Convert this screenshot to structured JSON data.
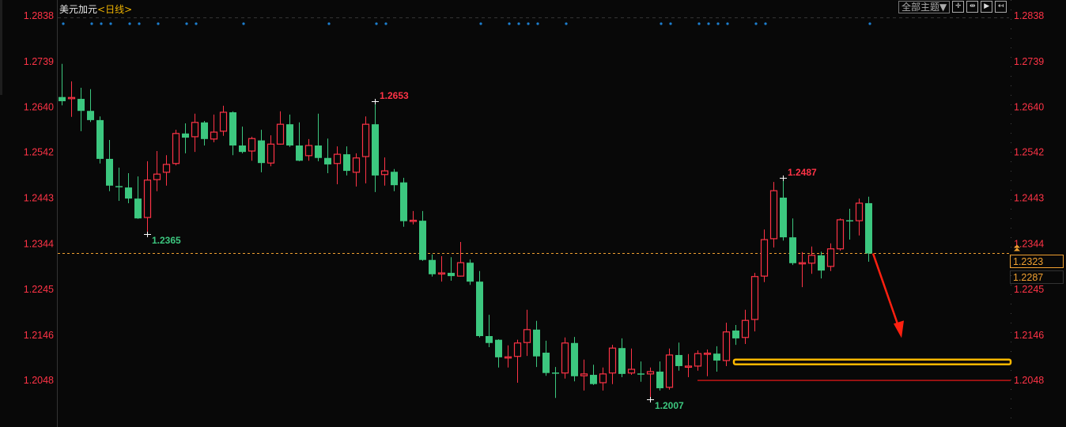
{
  "header": {
    "symbol": "美元加元",
    "period": "<日线>",
    "theme_button": "全部主题▼",
    "tools": [
      {
        "icon": "crosshair-icon",
        "glyph": "✛"
      },
      {
        "icon": "fit-range-icon",
        "glyph": "⇹"
      },
      {
        "icon": "play-forward-icon",
        "glyph": "▶"
      },
      {
        "icon": "exit-panel-icon",
        "glyph": "↤"
      }
    ]
  },
  "colors": {
    "background": "#080808",
    "up": "#ff3346",
    "down": "#3cc77f",
    "axis_text": "#ff3346",
    "current_price_line": "#f0a030",
    "marker_dot": "#1c7fd0",
    "highlight_box": "#ffb800",
    "support_line": "#ff1a1a",
    "arrow": "#ff2010"
  },
  "chart_data": {
    "type": "candlestick",
    "title": "美元加元<日线>",
    "ylim": [
      1.2007,
      1.2838
    ],
    "y_ticks": [
      "1.2838",
      "1.2739",
      "1.2640",
      "1.2542",
      "1.2443",
      "1.2344",
      "1.2245",
      "1.2146",
      "1.2048"
    ],
    "grid": false,
    "ohlc": [
      [
        1.2662,
        1.2734,
        1.2644,
        1.2653
      ],
      [
        1.2659,
        1.2696,
        1.2619,
        1.2661
      ],
      [
        1.2658,
        1.2682,
        1.2588,
        1.2632
      ],
      [
        1.2632,
        1.2679,
        1.2608,
        1.2612
      ],
      [
        1.2612,
        1.262,
        1.2518,
        1.2528
      ],
      [
        1.2528,
        1.2569,
        1.2458,
        1.247
      ],
      [
        1.2469,
        1.2509,
        1.2437,
        1.2468
      ],
      [
        1.2466,
        1.2497,
        1.2432,
        1.2442
      ],
      [
        1.2442,
        1.249,
        1.2398,
        1.2399
      ],
      [
        1.2401,
        1.2523,
        1.2365,
        1.2482
      ],
      [
        1.2483,
        1.2545,
        1.2458,
        1.2495
      ],
      [
        1.2499,
        1.2536,
        1.247,
        1.2516
      ],
      [
        1.2518,
        1.2591,
        1.2514,
        1.2583
      ],
      [
        1.2583,
        1.2605,
        1.254,
        1.2574
      ],
      [
        1.2576,
        1.2626,
        1.2543,
        1.2607
      ],
      [
        1.2607,
        1.261,
        1.2557,
        1.2571
      ],
      [
        1.2571,
        1.2624,
        1.2564,
        1.2586
      ],
      [
        1.2588,
        1.2643,
        1.2578,
        1.2629
      ],
      [
        1.2629,
        1.2631,
        1.2536,
        1.2557
      ],
      [
        1.2557,
        1.2598,
        1.254,
        1.2543
      ],
      [
        1.2545,
        1.2576,
        1.2524,
        1.2572
      ],
      [
        1.2568,
        1.2591,
        1.2499,
        1.2519
      ],
      [
        1.2519,
        1.2579,
        1.2512,
        1.256
      ],
      [
        1.256,
        1.2631,
        1.2559,
        1.2603
      ],
      [
        1.2603,
        1.2624,
        1.2554,
        1.2557
      ],
      [
        1.2557,
        1.2607,
        1.2523,
        1.2524
      ],
      [
        1.2535,
        1.2571,
        1.2524,
        1.2557
      ],
      [
        1.2557,
        1.2626,
        1.2523,
        1.253
      ],
      [
        1.253,
        1.2572,
        1.2497,
        1.2516
      ],
      [
        1.2518,
        1.2555,
        1.2473,
        1.2538
      ],
      [
        1.2538,
        1.2555,
        1.2492,
        1.2502
      ],
      [
        1.2499,
        1.254,
        1.2468,
        1.253
      ],
      [
        1.2533,
        1.262,
        1.2475,
        1.2603
      ],
      [
        1.2603,
        1.2653,
        1.2456,
        1.2492
      ],
      [
        1.2494,
        1.2531,
        1.247,
        1.2502
      ],
      [
        1.25,
        1.2506,
        1.2458,
        1.2471
      ],
      [
        1.2477,
        1.2487,
        1.2381,
        1.2393
      ],
      [
        1.2393,
        1.2415,
        1.2386,
        1.2395
      ],
      [
        1.2394,
        1.2415,
        1.2307,
        1.2309
      ],
      [
        1.2309,
        1.2321,
        1.2273,
        1.2278
      ],
      [
        1.2279,
        1.2317,
        1.2262,
        1.2281
      ],
      [
        1.2281,
        1.2315,
        1.2264,
        1.2274
      ],
      [
        1.2274,
        1.2348,
        1.2273,
        1.2303
      ],
      [
        1.2303,
        1.231,
        1.2255,
        1.2262
      ],
      [
        1.2262,
        1.2285,
        1.2141,
        1.2144
      ],
      [
        1.2144,
        1.219,
        1.212,
        1.2129
      ],
      [
        1.2136,
        1.2137,
        1.2076,
        1.2098
      ],
      [
        1.2097,
        1.2124,
        1.2076,
        1.2099
      ],
      [
        1.21,
        1.2136,
        1.2043,
        1.2129
      ],
      [
        1.213,
        1.2201,
        1.2101,
        1.2158
      ],
      [
        1.2158,
        1.2177,
        1.2077,
        1.21
      ],
      [
        1.2108,
        1.2134,
        1.2058,
        1.2064
      ],
      [
        1.2065,
        1.2077,
        1.201,
        1.2064
      ],
      [
        1.2064,
        1.2141,
        1.2052,
        1.2129
      ],
      [
        1.2129,
        1.2142,
        1.2046,
        1.2057
      ],
      [
        1.2058,
        1.2093,
        1.2026,
        1.2062
      ],
      [
        1.206,
        1.2082,
        1.2038,
        1.204
      ],
      [
        1.2043,
        1.2076,
        1.2026,
        1.2062
      ],
      [
        1.2064,
        1.2125,
        1.204,
        1.2118
      ],
      [
        1.2118,
        1.2139,
        1.2055,
        1.2062
      ],
      [
        1.2064,
        1.2117,
        1.206,
        1.2072
      ],
      [
        1.2063,
        1.2089,
        1.2045,
        1.2062
      ],
      [
        1.2062,
        1.2076,
        1.2007,
        1.2067
      ],
      [
        1.2067,
        1.2089,
        1.2026,
        1.2031
      ],
      [
        1.2033,
        1.2117,
        1.2028,
        1.2103
      ],
      [
        1.2103,
        1.213,
        1.2069,
        1.2079
      ],
      [
        1.2077,
        1.2105,
        1.2055,
        1.2079
      ],
      [
        1.2079,
        1.2113,
        1.2069,
        1.2106
      ],
      [
        1.2105,
        1.2115,
        1.2057,
        1.2107
      ],
      [
        1.2106,
        1.2122,
        1.2067,
        1.2091
      ],
      [
        1.2091,
        1.2173,
        1.2079,
        1.2153
      ],
      [
        1.2156,
        1.2168,
        1.2125,
        1.2139
      ],
      [
        1.2141,
        1.2201,
        1.2127,
        1.2178
      ],
      [
        1.218,
        1.2281,
        1.2154,
        1.2273
      ],
      [
        1.2274,
        1.2375,
        1.2261,
        1.2353
      ],
      [
        1.2355,
        1.2478,
        1.2336,
        1.2459
      ],
      [
        1.2444,
        1.2487,
        1.2351,
        1.2358
      ],
      [
        1.2358,
        1.2399,
        1.2298,
        1.2302
      ],
      [
        1.2301,
        1.2326,
        1.225,
        1.2303
      ],
      [
        1.2302,
        1.2338,
        1.2279,
        1.2319
      ],
      [
        1.2319,
        1.2327,
        1.2269,
        1.2286
      ],
      [
        1.2295,
        1.2345,
        1.2285,
        1.2333
      ],
      [
        1.2333,
        1.2399,
        1.2329,
        1.2396
      ],
      [
        1.2395,
        1.242,
        1.2353,
        1.2394
      ],
      [
        1.2394,
        1.2442,
        1.2362,
        1.2432
      ],
      [
        1.2432,
        1.2446,
        1.2305,
        1.2323
      ]
    ],
    "annotations": [
      {
        "label": "1.2365",
        "index": 9,
        "price": 1.2365,
        "kind": "low"
      },
      {
        "label": "1.2653",
        "index": 33,
        "price": 1.2653,
        "kind": "high"
      },
      {
        "label": "1.2007",
        "index": 62,
        "price": 1.2007,
        "kind": "low"
      },
      {
        "label": "1.2487",
        "index": 76,
        "price": 1.2487,
        "kind": "high"
      }
    ],
    "marker_dot_indices": [
      0,
      3,
      4,
      5,
      7,
      8,
      10,
      13,
      14,
      19,
      28,
      33,
      34,
      44,
      47,
      48,
      49,
      50,
      53,
      63,
      64,
      67,
      68,
      69,
      70,
      73,
      74,
      85
    ],
    "current_price": "1.2323",
    "secondary_price": "1.2287",
    "support_line": {
      "price": 1.2048,
      "from_index": 67
    },
    "highlight_box": {
      "price": 1.2088,
      "from_index": 70
    },
    "arrow": {
      "from_index": 85,
      "from_price": 1.2323,
      "to_price": 1.214
    }
  }
}
